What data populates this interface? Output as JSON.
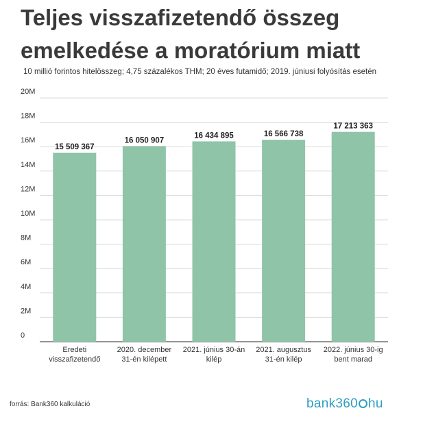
{
  "chart_data": {
    "type": "bar",
    "title": "Teljes visszafizetendő összeg emelkedése a moratórium miatt",
    "subtitle": "10 millió forintos hitelösszeg; 4,75 százalékos THM; 20 éves futamidő; 2019. júniusi folyósítás esetén",
    "categories": [
      [
        "Eredeti",
        "visszafizetendő"
      ],
      [
        "2020. december",
        "31-én kilépett"
      ],
      [
        "2021. június 30-án",
        "kilép"
      ],
      [
        "2021. augusztus",
        "31-én kilép"
      ],
      [
        "2022. június 30-ig",
        "bent marad"
      ]
    ],
    "values": [
      15509367,
      16050907,
      16434895,
      16566738,
      17213363
    ],
    "value_labels": [
      "15 509 367",
      "16 050 907",
      "16 434 895",
      "16 566 738",
      "17 213 363"
    ],
    "yticks": [
      0,
      2000000,
      4000000,
      6000000,
      8000000,
      10000000,
      12000000,
      14000000,
      16000000,
      18000000,
      20000000
    ],
    "ytick_labels": [
      "0",
      "2M",
      "4M",
      "6M",
      "8M",
      "10M",
      "12M",
      "14M",
      "16M",
      "18M",
      "20M"
    ],
    "ylim": [
      0,
      20000000
    ],
    "grid": true,
    "bar_color": "#8fc4a9"
  },
  "footer": {
    "source": "forrás: Bank360 kalkuláció",
    "logo_left": "bank360",
    "logo_right": "hu",
    "logo_ring": "."
  }
}
